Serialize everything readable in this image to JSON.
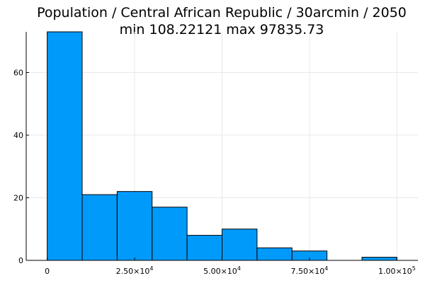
{
  "chart_data": {
    "type": "bar",
    "title": "Population / Central African Republic / 30arcmin / 2050",
    "subtitle": "min 108.22121  max 97835.73",
    "xlabel": "",
    "ylabel": "",
    "bins": [
      {
        "start": 0,
        "end": 10000,
        "count": 73
      },
      {
        "start": 10000,
        "end": 20000,
        "count": 21
      },
      {
        "start": 20000,
        "end": 30000,
        "count": 22
      },
      {
        "start": 30000,
        "end": 40000,
        "count": 17
      },
      {
        "start": 40000,
        "end": 50000,
        "count": 8
      },
      {
        "start": 50000,
        "end": 60000,
        "count": 10
      },
      {
        "start": 60000,
        "end": 70000,
        "count": 4
      },
      {
        "start": 70000,
        "end": 80000,
        "count": 3
      },
      {
        "start": 80000,
        "end": 90000,
        "count": 0
      },
      {
        "start": 90000,
        "end": 100000,
        "count": 1
      }
    ],
    "xlim": [
      -6000,
      106000
    ],
    "ylim": [
      0,
      73
    ],
    "x_ticks": [
      {
        "value": 0,
        "mantissa": "0",
        "exp": ""
      },
      {
        "value": 25000,
        "mantissa": "2.50×10",
        "exp": "4"
      },
      {
        "value": 50000,
        "mantissa": "5.00×10",
        "exp": "4"
      },
      {
        "value": 75000,
        "mantissa": "7.50×10",
        "exp": "4"
      },
      {
        "value": 100000,
        "mantissa": "1.00×10",
        "exp": "5"
      }
    ],
    "y_ticks": [
      {
        "value": 0,
        "label": "0"
      },
      {
        "value": 20,
        "label": "20"
      },
      {
        "value": 40,
        "label": "40"
      },
      {
        "value": 60,
        "label": "60"
      }
    ],
    "grid": true,
    "legend": "none",
    "colors": {
      "bar_fill": "#009AFA",
      "bar_stroke": "#000000",
      "grid": "#E8E8E8",
      "axis": "#000000"
    }
  }
}
